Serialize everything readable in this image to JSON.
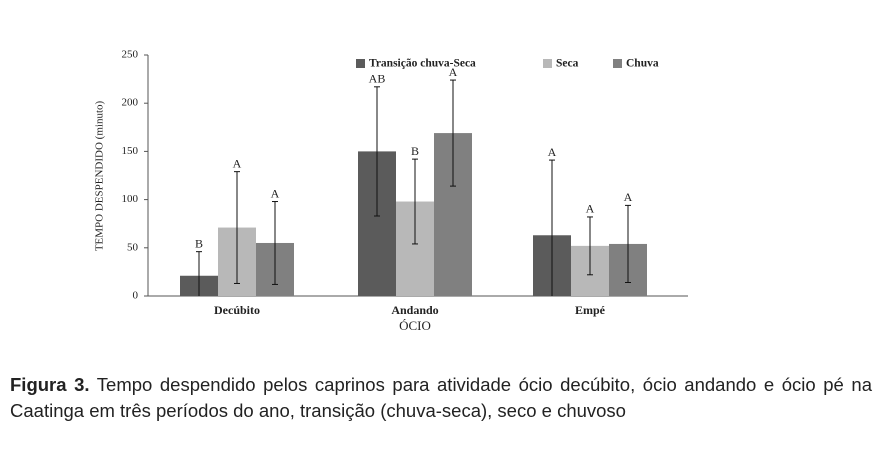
{
  "chart_data": {
    "type": "bar",
    "y_label": "TEMPO DESPENDIDO (minuto)",
    "x_label": "ÓCIO",
    "categories": [
      "Decúbito",
      "Andando",
      "Empé"
    ],
    "series": [
      {
        "name": "Transição chuva-Seca",
        "color": "#5b5b5b",
        "values": [
          21,
          150,
          63
        ],
        "errors": [
          25,
          67,
          78
        ],
        "significance": [
          "B",
          "AB",
          "A"
        ]
      },
      {
        "name": "Seca",
        "color": "#b8b8b8",
        "values": [
          71,
          98,
          52
        ],
        "errors": [
          58,
          44,
          30
        ],
        "significance": [
          "A",
          "B",
          "A"
        ]
      },
      {
        "name": "Chuva",
        "color": "#808080",
        "values": [
          55,
          169,
          54
        ],
        "errors": [
          43,
          55,
          40
        ],
        "significance": [
          "A",
          "A",
          "A"
        ]
      }
    ],
    "ylim": [
      0,
      250
    ],
    "yticks": [
      0,
      50,
      100,
      150,
      200,
      250
    ]
  },
  "caption": {
    "label": "Figura 3.",
    "text": "Tempo despendido pelos caprinos para atividade ócio decúbito, ócio andando e ócio pé na Caatinga em três períodos do ano, transição (chuva-seca), seco e chuvoso"
  }
}
